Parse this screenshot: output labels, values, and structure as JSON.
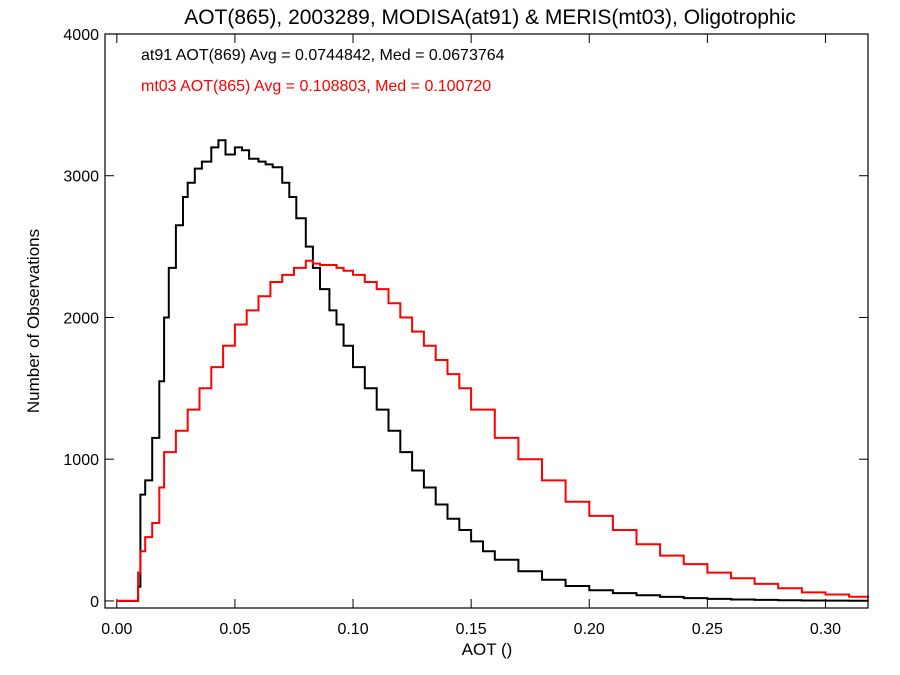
{
  "chart_data": {
    "type": "line",
    "title": "AOT(865), 2003289, MODISA(at91) & MERIS(mt03), Oligotrophic",
    "xlabel": "AOT ()",
    "ylabel": "Number of Observations",
    "xlim": [
      -0.005,
      0.318
    ],
    "ylim": [
      -50,
      4000
    ],
    "x_ticks": [
      0.0,
      0.05,
      0.1,
      0.15,
      0.2,
      0.25,
      0.3
    ],
    "x_tick_labels": [
      "0.00",
      "0.05",
      "0.10",
      "0.15",
      "0.20",
      "0.25",
      "0.30"
    ],
    "y_ticks": [
      0,
      1000,
      2000,
      3000,
      4000
    ],
    "y_tick_labels": [
      "0",
      "1000",
      "2000",
      "3000",
      "4000"
    ],
    "grid": false,
    "annotations": [
      {
        "text": "at91 AOT(869) Avg = 0.0744842, Med = 0.0673764",
        "color": "#000000"
      },
      {
        "text": "mt03 AOT(865) Avg = 0.108803, Med = 0.100720",
        "color": "#ff0000"
      }
    ],
    "series": [
      {
        "color": "#000000",
        "x": [
          0.0,
          0.005,
          0.008,
          0.009,
          0.01,
          0.012,
          0.015,
          0.018,
          0.02,
          0.022,
          0.025,
          0.028,
          0.03,
          0.033,
          0.036,
          0.04,
          0.043,
          0.046,
          0.05,
          0.053,
          0.056,
          0.06,
          0.063,
          0.066,
          0.07,
          0.073,
          0.076,
          0.08,
          0.083,
          0.086,
          0.09,
          0.093,
          0.096,
          0.1,
          0.105,
          0.11,
          0.115,
          0.12,
          0.125,
          0.13,
          0.135,
          0.14,
          0.145,
          0.15,
          0.155,
          0.16,
          0.17,
          0.18,
          0.19,
          0.2,
          0.21,
          0.22,
          0.23,
          0.24,
          0.25,
          0.26,
          0.27,
          0.28,
          0.29,
          0.3,
          0.31,
          0.318
        ],
        "y": [
          0,
          0,
          0,
          100,
          750,
          850,
          1150,
          1550,
          2000,
          2350,
          2650,
          2850,
          2950,
          3050,
          3100,
          3200,
          3250,
          3150,
          3200,
          3180,
          3120,
          3100,
          3080,
          3060,
          2950,
          2850,
          2700,
          2500,
          2350,
          2200,
          2050,
          1950,
          1800,
          1650,
          1500,
          1350,
          1200,
          1050,
          920,
          800,
          680,
          580,
          500,
          420,
          350,
          290,
          210,
          150,
          105,
          75,
          55,
          40,
          28,
          20,
          14,
          10,
          7,
          5,
          3,
          2,
          1,
          0
        ]
      },
      {
        "color": "#ff0000",
        "x": [
          0.0,
          0.008,
          0.009,
          0.01,
          0.012,
          0.015,
          0.018,
          0.02,
          0.025,
          0.03,
          0.035,
          0.04,
          0.045,
          0.05,
          0.055,
          0.06,
          0.065,
          0.07,
          0.075,
          0.08,
          0.083,
          0.086,
          0.09,
          0.093,
          0.096,
          0.1,
          0.105,
          0.11,
          0.115,
          0.12,
          0.125,
          0.13,
          0.135,
          0.14,
          0.145,
          0.15,
          0.16,
          0.17,
          0.18,
          0.19,
          0.2,
          0.21,
          0.22,
          0.23,
          0.24,
          0.25,
          0.26,
          0.27,
          0.28,
          0.29,
          0.3,
          0.31,
          0.318
        ],
        "y": [
          0,
          0,
          200,
          350,
          450,
          550,
          800,
          1050,
          1200,
          1350,
          1500,
          1650,
          1800,
          1950,
          2050,
          2150,
          2250,
          2300,
          2350,
          2400,
          2380,
          2370,
          2370,
          2350,
          2330,
          2300,
          2250,
          2200,
          2100,
          2000,
          1900,
          1800,
          1700,
          1600,
          1500,
          1350,
          1150,
          1000,
          850,
          700,
          600,
          500,
          400,
          320,
          260,
          200,
          160,
          120,
          90,
          60,
          45,
          30,
          20
        ]
      }
    ]
  }
}
